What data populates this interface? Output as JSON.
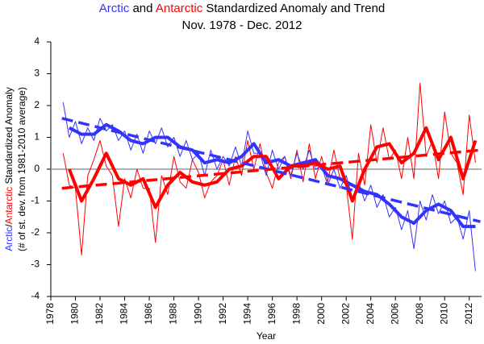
{
  "chart_data": {
    "type": "line",
    "title": [
      {
        "text": "Arctic",
        "color": "#3333ff"
      },
      {
        "text": " and ",
        "color": "#000000"
      },
      {
        "text": "Antarctic",
        "color": "#ff0000"
      },
      {
        "text": " Standardized Anomaly and Trend",
        "color": "#000000"
      }
    ],
    "subtitle": "Nov. 1978 - Dec. 2012",
    "x_label": "Year",
    "y_label": [
      {
        "text": "Arctic",
        "color": "#3333ff"
      },
      {
        "text": "/",
        "color": "#000000"
      },
      {
        "text": "Antarctic",
        "color": "#ff0000"
      },
      {
        "text": " Standardized Anomaly",
        "color": "#000000"
      }
    ],
    "y_label_2": "(# of st. dev. from 1981-2010 average)",
    "xlim": [
      1978,
      2013
    ],
    "xticks": [
      1978,
      1980,
      1982,
      1984,
      1986,
      1988,
      1990,
      1992,
      1994,
      1996,
      1998,
      2000,
      2002,
      2004,
      2006,
      2008,
      2010,
      2012
    ],
    "ylim": [
      -4,
      4
    ],
    "yticks": [
      -4,
      -3,
      -2,
      -1,
      0,
      1,
      2,
      3,
      4
    ],
    "grid": false,
    "zero_line": true,
    "series": [
      {
        "color": "#ff0000",
        "style": "monthly",
        "x": [
          1979,
          1979.5,
          1980,
          1980.5,
          1981,
          1981.5,
          1982,
          1982.5,
          1983,
          1983.5,
          1984,
          1984.5,
          1985,
          1985.5,
          1986,
          1986.5,
          1987,
          1987.5,
          1988,
          1988.5,
          1989,
          1989.5,
          1990,
          1990.5,
          1991,
          1991.5,
          1992,
          1992.5,
          1993,
          1993.5,
          1994,
          1994.5,
          1995,
          1995.5,
          1996,
          1996.5,
          1997,
          1997.5,
          1998,
          1998.5,
          1999,
          1999.5,
          2000,
          2000.5,
          2001,
          2001.5,
          2002,
          2002.5,
          2003,
          2003.5,
          2004,
          2004.5,
          2005,
          2005.5,
          2006,
          2006.5,
          2007,
          2007.5,
          2008,
          2008.5,
          2009,
          2009.5,
          2010,
          2010.5,
          2011,
          2011.5,
          2012,
          2012.5
        ],
        "values": [
          0.5,
          -0.5,
          -0.6,
          -2.7,
          -0.2,
          0.3,
          0.9,
          0.1,
          -0.2,
          -1.8,
          -0.3,
          -0.9,
          0.0,
          -0.6,
          -0.6,
          -2.3,
          -0.2,
          -0.8,
          0.4,
          -0.4,
          -0.6,
          0.3,
          -0.1,
          -0.9,
          -0.4,
          -0.2,
          0.3,
          -0.5,
          0.4,
          -0.2,
          0.9,
          0.0,
          0.8,
          -0.1,
          -0.6,
          0.2,
          0.4,
          -0.3,
          0.6,
          -0.4,
          0.8,
          -0.3,
          0.4,
          -0.4,
          0.6,
          -0.3,
          -0.5,
          -2.2,
          0.5,
          -0.5,
          1.4,
          0.2,
          1.3,
          0.3,
          0.6,
          -0.3,
          1.0,
          -0.3,
          2.7,
          0.4,
          0.9,
          -0.3,
          1.8,
          0.5,
          0.2,
          -0.8,
          1.7,
          0.2
        ]
      },
      {
        "color": "#3333ff",
        "style": "monthly",
        "x": [
          1979,
          1979.5,
          1980,
          1980.5,
          1981,
          1981.5,
          1982,
          1982.5,
          1983,
          1983.5,
          1984,
          1984.5,
          1985,
          1985.5,
          1986,
          1986.5,
          1987,
          1987.5,
          1988,
          1988.5,
          1989,
          1989.5,
          1990,
          1990.5,
          1991,
          1991.5,
          1992,
          1992.5,
          1993,
          1993.5,
          1994,
          1994.5,
          1995,
          1995.5,
          1996,
          1996.5,
          1997,
          1997.5,
          1998,
          1998.5,
          1999,
          1999.5,
          2000,
          2000.5,
          2001,
          2001.5,
          2002,
          2002.5,
          2003,
          2003.5,
          2004,
          2004.5,
          2005,
          2005.5,
          2006,
          2006.5,
          2007,
          2007.5,
          2008,
          2008.5,
          2009,
          2009.5,
          2010,
          2010.5,
          2011,
          2011.5,
          2012,
          2012.5
        ],
        "values": [
          2.1,
          1.0,
          1.5,
          0.8,
          1.3,
          0.9,
          1.6,
          1.2,
          1.4,
          0.9,
          1.2,
          0.6,
          1.1,
          0.5,
          1.2,
          0.8,
          1.3,
          0.7,
          1.0,
          0.4,
          0.9,
          0.3,
          0.5,
          -0.2,
          0.6,
          0.0,
          0.4,
          0.1,
          0.7,
          0.1,
          1.2,
          0.5,
          0.5,
          -0.2,
          0.6,
          0.0,
          0.4,
          -0.2,
          0.5,
          0.0,
          0.6,
          0.0,
          0.1,
          -0.5,
          0.0,
          -0.6,
          -0.2,
          -0.9,
          -0.4,
          -1.0,
          -0.5,
          -1.2,
          -0.8,
          -1.5,
          -1.2,
          -1.9,
          -1.3,
          -2.5,
          -1.0,
          -1.6,
          -0.8,
          -1.4,
          -1.0,
          -1.7,
          -1.5,
          -2.2,
          -1.3,
          -3.2
        ]
      },
      {
        "color": "#3333ff",
        "style": "smoothed",
        "x": [
          1979.5,
          1980.5,
          1981.5,
          1982.5,
          1983.5,
          1984.5,
          1985.5,
          1986.5,
          1987.5,
          1988.5,
          1989.5,
          1990.5,
          1991.5,
          1992.5,
          1993.5,
          1994.5,
          1995.5,
          1996.5,
          1997.5,
          1998.5,
          1999.5,
          2000.5,
          2001.5,
          2002.5,
          2003.5,
          2004.5,
          2005.5,
          2006.5,
          2007.5,
          2008.5,
          2009.5,
          2010.5,
          2011.5,
          2012.5
        ],
        "values": [
          1.3,
          1.1,
          1.1,
          1.4,
          1.2,
          0.9,
          0.8,
          1.0,
          1.0,
          0.7,
          0.6,
          0.2,
          0.3,
          0.2,
          0.4,
          0.8,
          0.2,
          0.3,
          0.1,
          0.2,
          0.3,
          -0.2,
          -0.3,
          -0.5,
          -0.7,
          -0.8,
          -1.1,
          -1.5,
          -1.7,
          -1.3,
          -1.1,
          -1.3,
          -1.8,
          -1.8
        ]
      },
      {
        "color": "#ff0000",
        "style": "smoothed",
        "x": [
          1979.5,
          1980.5,
          1981.5,
          1982.5,
          1983.5,
          1984.5,
          1985.5,
          1986.5,
          1987.5,
          1988.5,
          1989.5,
          1990.5,
          1991.5,
          1992.5,
          1993.5,
          1994.5,
          1995.5,
          1996.5,
          1997.5,
          1998.5,
          1999.5,
          2000.5,
          2001.5,
          2002.5,
          2003.5,
          2004.5,
          2005.5,
          2006.5,
          2007.5,
          2008.5,
          2009.5,
          2010.5,
          2011.5,
          2012.5
        ],
        "values": [
          0.0,
          -1.0,
          -0.3,
          0.5,
          -0.3,
          -0.5,
          -0.3,
          -1.2,
          -0.5,
          -0.1,
          -0.4,
          -0.5,
          -0.4,
          0.0,
          0.1,
          0.4,
          0.4,
          -0.3,
          0.1,
          0.1,
          0.2,
          0.0,
          0.1,
          -1.0,
          0.0,
          0.7,
          0.8,
          0.2,
          0.5,
          1.3,
          0.3,
          1.0,
          -0.3,
          0.9
        ]
      },
      {
        "color": "#3333ff",
        "style": "trend",
        "x": [
          1978.9,
          2012.9
        ],
        "values": [
          1.6,
          -1.65
        ]
      },
      {
        "color": "#ff0000",
        "style": "trend",
        "x": [
          1978.9,
          2012.9
        ],
        "values": [
          -0.6,
          0.6
        ]
      }
    ]
  }
}
